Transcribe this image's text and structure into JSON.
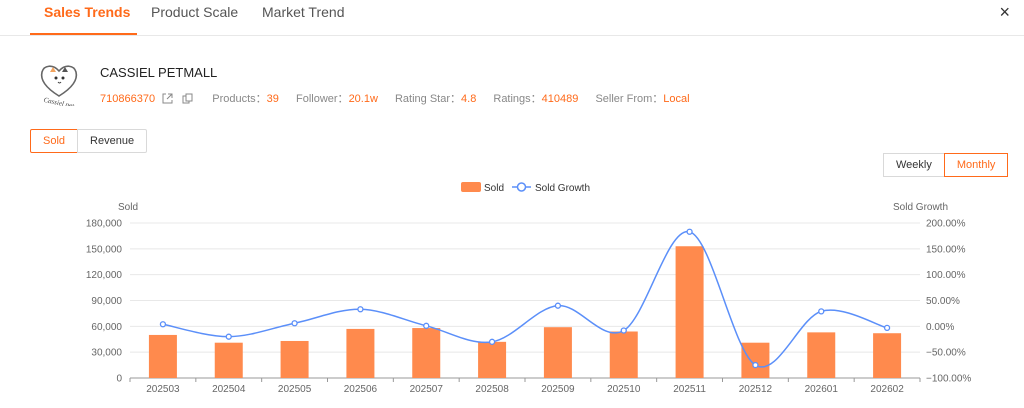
{
  "tabs": [
    {
      "label": "Sales Trends",
      "active": true
    },
    {
      "label": "Product Scale",
      "active": false
    },
    {
      "label": "Market Trend",
      "active": false
    }
  ],
  "close_label": "×",
  "shop": {
    "logo_text": "Cassiel pet",
    "name": "CASSIEL PETMALL",
    "id": "710866370",
    "products_label": "Products：",
    "products": "39",
    "follower_label": "Follower：",
    "follower": "20.1w",
    "rating_star_label": "Rating Star：",
    "rating_star": "4.8",
    "ratings_label": "Ratings：",
    "ratings": "410489",
    "seller_from_label": "Seller From：",
    "seller_from": "Local"
  },
  "metric_toggle": {
    "sold": "Sold",
    "revenue": "Revenue",
    "selected": "Sold"
  },
  "period_toggle": {
    "weekly": "Weekly",
    "monthly": "Monthly",
    "selected": "Monthly"
  },
  "colors": {
    "accent": "#ff6a1a",
    "bar": "#ff8a4d",
    "line": "#5b8ff9"
  },
  "chart_data": {
    "type": "bar",
    "legend": [
      "Sold",
      "Sold Growth"
    ],
    "legend_position": "top-center",
    "left_axis_title": "Sold",
    "right_axis_title": "Sold Growth",
    "left_ticks": [
      "0",
      "30,000",
      "60,000",
      "90,000",
      "120,000",
      "150,000",
      "180,000"
    ],
    "right_ticks": [
      "−100.00%",
      "−50.00%",
      "0.00%",
      "50.00%",
      "100.00%",
      "150.00%",
      "200.00%"
    ],
    "ylim": [
      0,
      180000
    ],
    "y2lim": [
      -100,
      200
    ],
    "grid": true,
    "categories": [
      "202503",
      "202504",
      "202505",
      "202506",
      "202507",
      "202508",
      "202509",
      "202510",
      "202511",
      "202512",
      "202601",
      "202602"
    ],
    "series": [
      {
        "name": "Sold",
        "type": "bar",
        "values": [
          50000,
          41000,
          43000,
          57000,
          58000,
          42000,
          59000,
          54000,
          153000,
          41000,
          53000,
          52000
        ]
      },
      {
        "name": "Sold Growth",
        "type": "line",
        "axis": "right",
        "values": [
          4,
          -20,
          6,
          33,
          1,
          -30,
          40,
          -8,
          183,
          -75,
          29,
          -3
        ]
      }
    ]
  }
}
